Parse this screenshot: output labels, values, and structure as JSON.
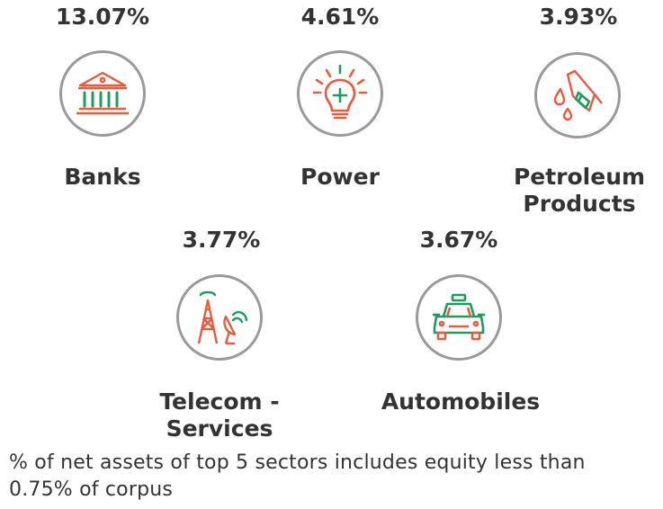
{
  "sectors": [
    {
      "name": "Banks",
      "percent": "13.07%",
      "icon": "bank-icon"
    },
    {
      "name": "Power",
      "percent": "4.61%",
      "icon": "lightbulb-icon"
    },
    {
      "name": "Petroleum Products",
      "name_line1": "Petroleum",
      "name_line2": "Products",
      "percent": "3.93%",
      "icon": "fuel-nozzle-icon"
    },
    {
      "name": "Telecom - Services",
      "name_line1": "Telecom -",
      "name_line2": "Services",
      "percent": "3.77%",
      "icon": "telecom-tower-icon"
    },
    {
      "name": "Automobiles",
      "percent": "3.67%",
      "icon": "car-icon"
    }
  ],
  "footnote": "% of net assets of top 5 sectors includes equity less than 0.75% of corpus",
  "colors": {
    "accent_orange": "#ec5a3c",
    "accent_green": "#1c9d5c",
    "circle_border": "#9a9a9a",
    "text": "#333333"
  }
}
